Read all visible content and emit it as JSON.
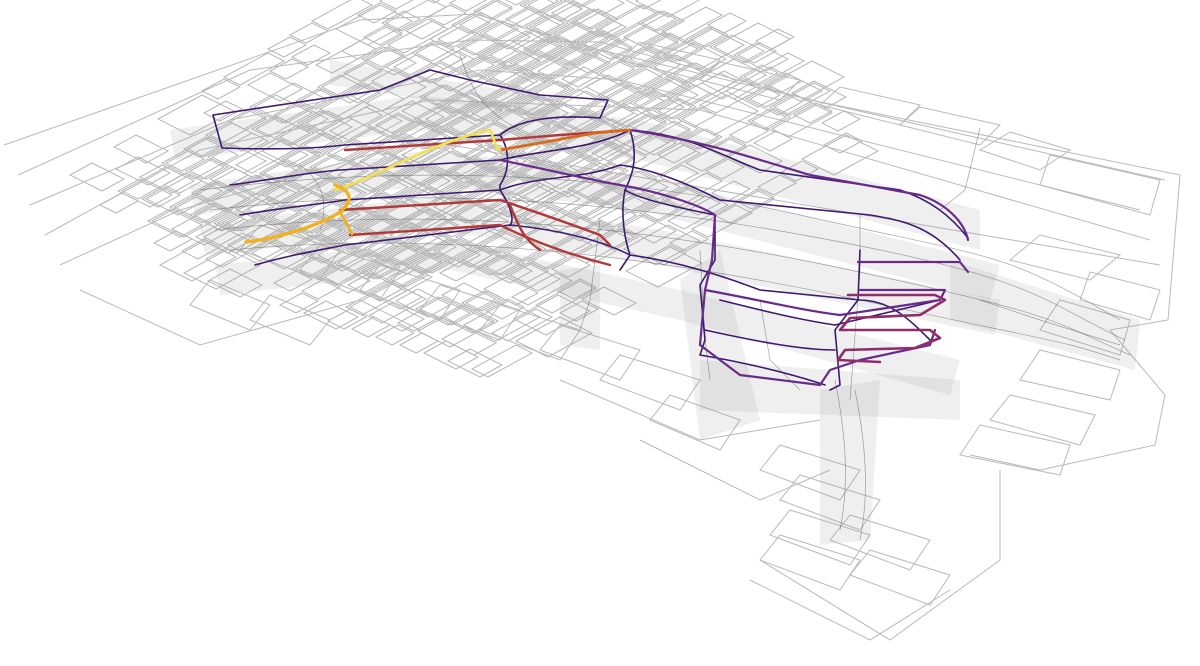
{
  "colors": {
    "background": "#ffffff",
    "grid": "#b9b9b9",
    "band": "#9a9a9a",
    "route_dark": "#3d1a6e",
    "route_purple": "#6a2a8a",
    "route_magenta": "#8e2d6a",
    "route_red": "#b03a3a",
    "route_orange": "#d66a1e",
    "route_yellow": "#f2e14a",
    "route_gold": "#f0b21e"
  },
  "layers": [
    "level-1",
    "level-2",
    "level-3",
    "level-4",
    "level-5"
  ]
}
